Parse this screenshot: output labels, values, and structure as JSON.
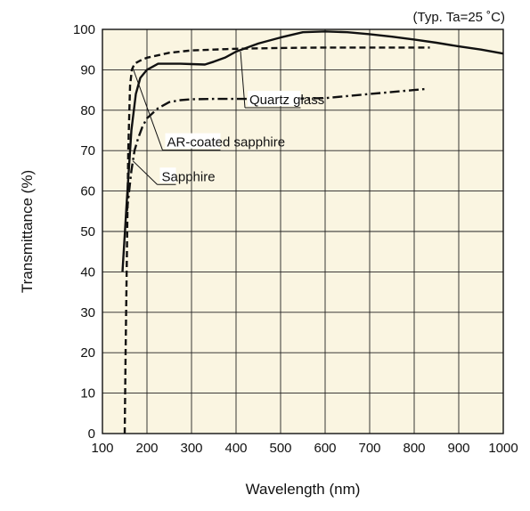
{
  "chart_data": {
    "type": "line",
    "note": "(Typ. Ta=25 ˚C)",
    "xlabel": "Wavelength (nm)",
    "ylabel": "Transmittance (%)",
    "xlim": [
      100,
      1000
    ],
    "ylim": [
      0,
      100
    ],
    "x_ticks": [
      100,
      200,
      300,
      400,
      500,
      600,
      700,
      800,
      900,
      1000
    ],
    "y_ticks": [
      0,
      10,
      20,
      30,
      40,
      50,
      60,
      70,
      80,
      90,
      100
    ],
    "grid": true,
    "background": "#faf5e1",
    "series": [
      {
        "name": "Quartz glass",
        "style": "solid",
        "x": [
          145,
          155,
          165,
          175,
          185,
          200,
          225,
          250,
          275,
          300,
          330,
          350,
          375,
          400,
          450,
          500,
          550,
          600,
          650,
          700,
          750,
          800,
          850,
          900,
          950,
          1000
        ],
        "y": [
          40,
          58,
          75,
          84,
          88,
          90,
          91.5,
          91.5,
          91.5,
          91.4,
          91.3,
          92,
          93,
          94.5,
          96.5,
          98,
          99.3,
          99.5,
          99.3,
          98.8,
          98.2,
          97.5,
          96.7,
          95.8,
          95,
          94
        ]
      },
      {
        "name": "AR-coated sapphire",
        "style": "dashed",
        "x": [
          150,
          152,
          155,
          158,
          162,
          166,
          172,
          185,
          200,
          250,
          300,
          350,
          400,
          500,
          600,
          700,
          800,
          835
        ],
        "y": [
          0,
          20,
          45,
          70,
          86,
          90,
          91.5,
          92.3,
          93,
          94.2,
          94.8,
          95,
          95.2,
          95.4,
          95.5,
          95.5,
          95.5,
          95.5
        ]
      },
      {
        "name": "Sapphire",
        "style": "dash-dot",
        "x": [
          155,
          160,
          165,
          172,
          180,
          190,
          200,
          225,
          250,
          275,
          300,
          350,
          400,
          500,
          600,
          700,
          800,
          830
        ],
        "y": [
          55,
          60,
          65,
          70,
          73,
          76,
          78,
          80.5,
          82,
          82.5,
          82.7,
          82.8,
          82.8,
          82.8,
          83,
          84,
          85,
          85.3
        ]
      }
    ],
    "annotations": [
      {
        "text": "Quartz glass",
        "points_to": [
          410,
          94.5
        ],
        "label_at": [
          430,
          81.5
        ],
        "underline_to": 545
      },
      {
        "text": "AR-coated sapphire",
        "points_to": [
          168,
          90.5
        ],
        "label_at": [
          245,
          71
        ],
        "underline_to": 365
      },
      {
        "text": "Sapphire",
        "points_to": [
          168,
          67.5
        ],
        "label_at": [
          233,
          62.5
        ],
        "underline_to": 265
      }
    ]
  }
}
